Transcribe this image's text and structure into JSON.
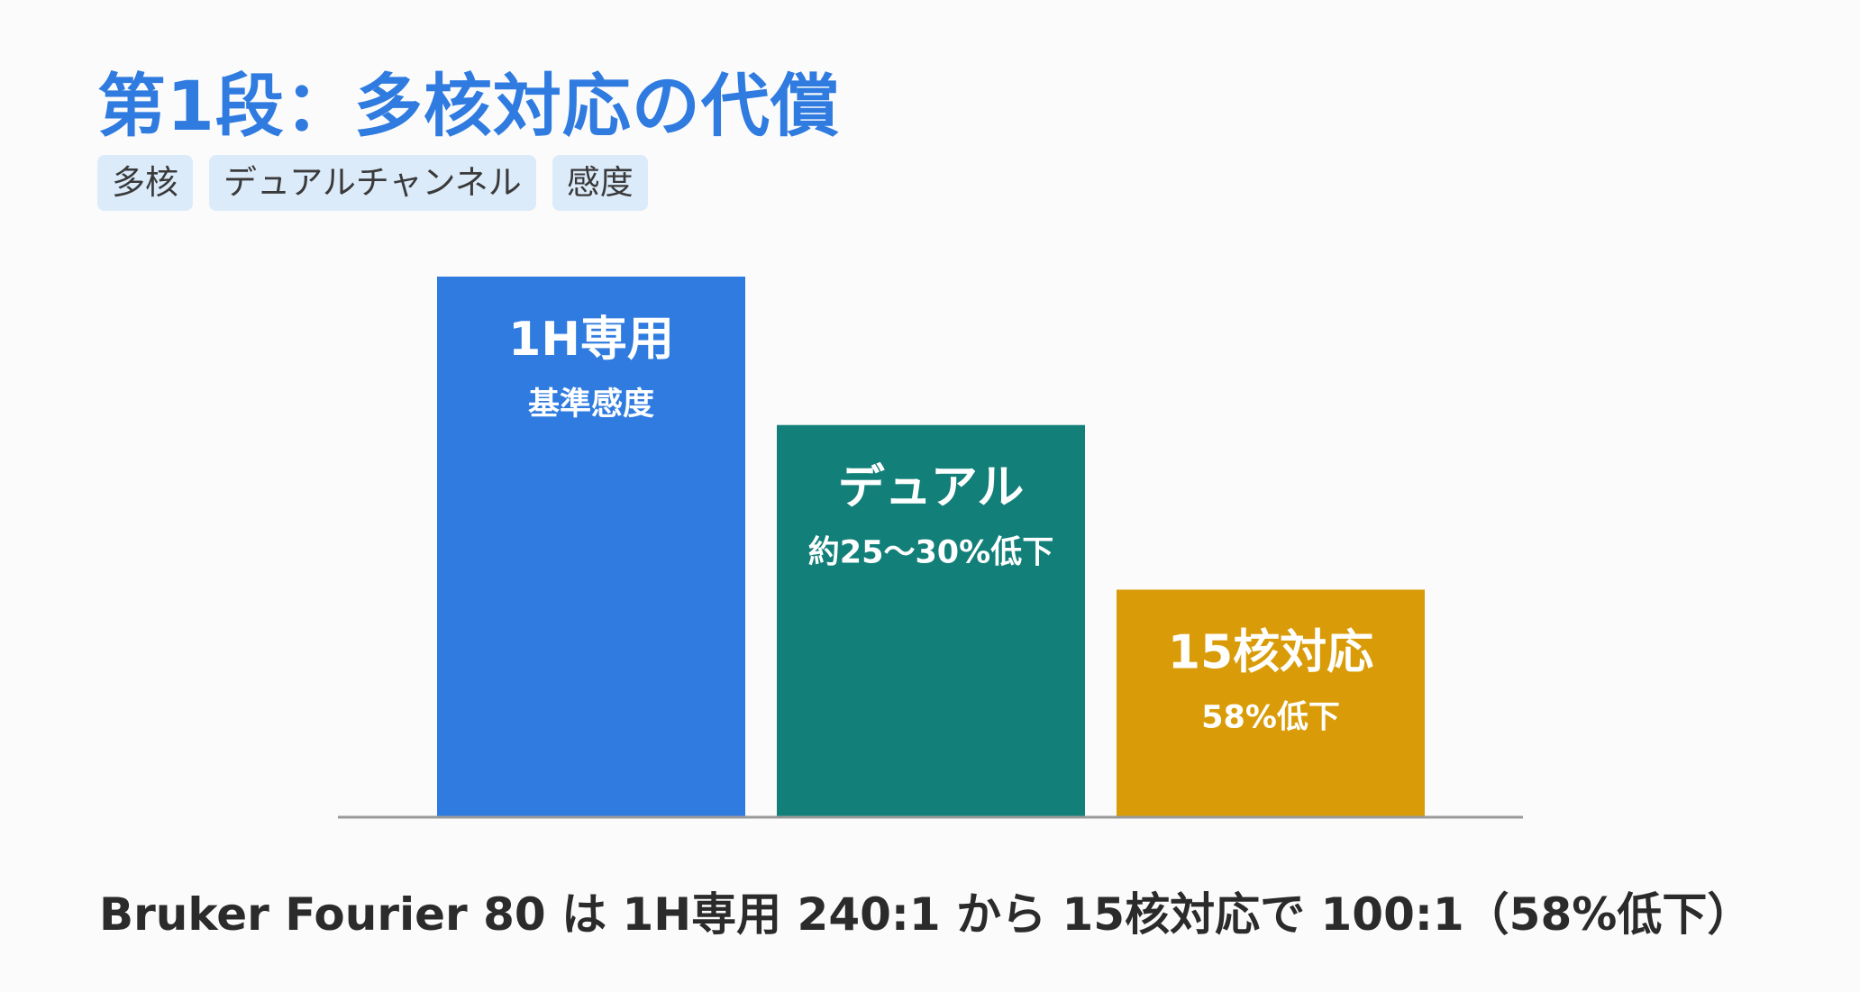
{
  "title": "第1段：多核対応の代償",
  "tags": [
    "多核",
    "デュアルチャンネル",
    "感度"
  ],
  "caption": "Bruker Fourier 80 は 1H専用 240:1 から 15核対応で 100:1（58%低下）",
  "chart_data": {
    "type": "bar",
    "categories": [
      "1H専用",
      "デュアル",
      "15核対応"
    ],
    "values": [
      100,
      72.5,
      42
    ],
    "bar_sublabels": [
      "基準感度",
      "約25〜30%低下",
      "58%低下"
    ],
    "colors": [
      "#2f7be0",
      "#127f79",
      "#d99c08"
    ],
    "ylim": [
      0,
      100
    ],
    "grid": false,
    "legend": "none",
    "xlabel": "",
    "ylabel": ""
  }
}
